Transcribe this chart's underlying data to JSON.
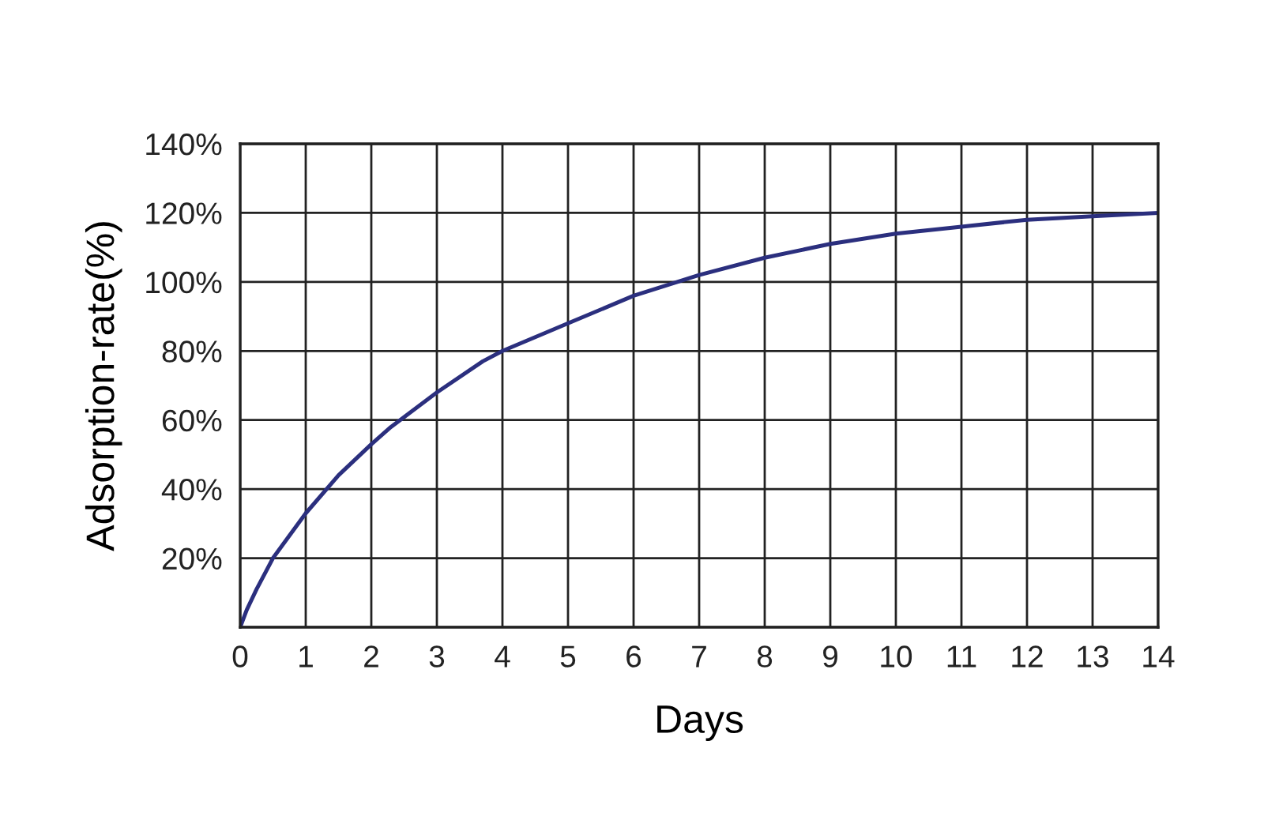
{
  "chart_data": {
    "type": "line",
    "xlabel": "Days",
    "ylabel": "Adsorption-rate(%)",
    "x": [
      0,
      0.1,
      0.25,
      0.5,
      1,
      1.5,
      2,
      2.3,
      3,
      3.7,
      4,
      5,
      6,
      7,
      8,
      9,
      10,
      11,
      12,
      13,
      14
    ],
    "series": [
      {
        "color": "#2b2f7e",
        "values": [
          0,
          5,
          11,
          20,
          33,
          44,
          53,
          58,
          68,
          77,
          80,
          88,
          96,
          102,
          107,
          111,
          114,
          116,
          118,
          119,
          120
        ]
      }
    ],
    "xlim": [
      0,
      14
    ],
    "ylim": [
      0,
      140
    ],
    "xticks": [
      0,
      1,
      2,
      3,
      4,
      5,
      6,
      7,
      8,
      9,
      10,
      11,
      12,
      13,
      14
    ],
    "yticks": [
      {
        "value": 0,
        "label": null
      },
      {
        "value": 20,
        "label": "20%"
      },
      {
        "value": 40,
        "label": "40%"
      },
      {
        "value": 60,
        "label": "60%"
      },
      {
        "value": 80,
        "label": "80%"
      },
      {
        "value": 100,
        "label": "100%"
      },
      {
        "value": 120,
        "label": "120%"
      },
      {
        "value": 140,
        "label": "140%"
      }
    ],
    "grid": true,
    "marker": "none",
    "line_style": "solid",
    "legend": false
  }
}
